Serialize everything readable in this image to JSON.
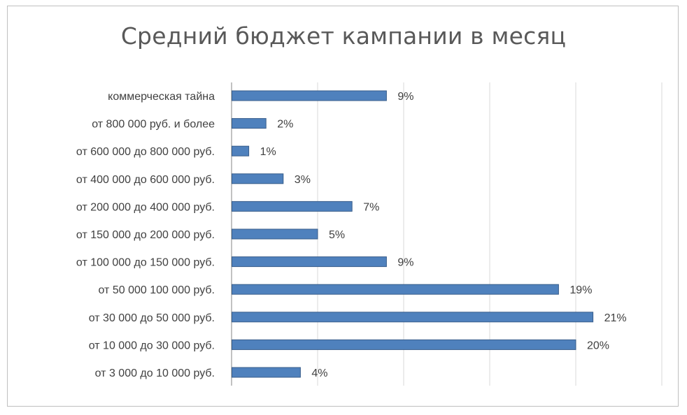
{
  "chart_data": {
    "type": "bar",
    "orientation": "horizontal",
    "title": "Средний бюджет кампании в месяц",
    "categories": [
      "коммерческая тайна",
      "от 800 000 руб. и более",
      "от 600 000 до 800 000 руб.",
      "от 400 000 до 600 000 руб.",
      "от 200 000 до 400 000 руб.",
      "от 150 000 до 200 000 руб.",
      "от  100 000 до 150 000 руб.",
      "от 50 000 100 000 руб.",
      "от 30 000 до 50 000 руб.",
      "от 10 000 до 30 000 руб.",
      "от 3 000  до 10 000 руб."
    ],
    "values": [
      9,
      2,
      1,
      3,
      7,
      5,
      9,
      19,
      21,
      20,
      4
    ],
    "value_labels": [
      "9%",
      "2%",
      "1%",
      "3%",
      "7%",
      "5%",
      "9%",
      "19%",
      "21%",
      "20%",
      "4%"
    ],
    "unit": "%",
    "xlim": [
      0,
      25
    ],
    "grid": true,
    "grid_step": 5,
    "bar_color": "#4f81bd",
    "bar_border_color": "#385d8a",
    "gridline_color": "#d9d9d9",
    "axis_color": "#868686",
    "legend": "none"
  }
}
